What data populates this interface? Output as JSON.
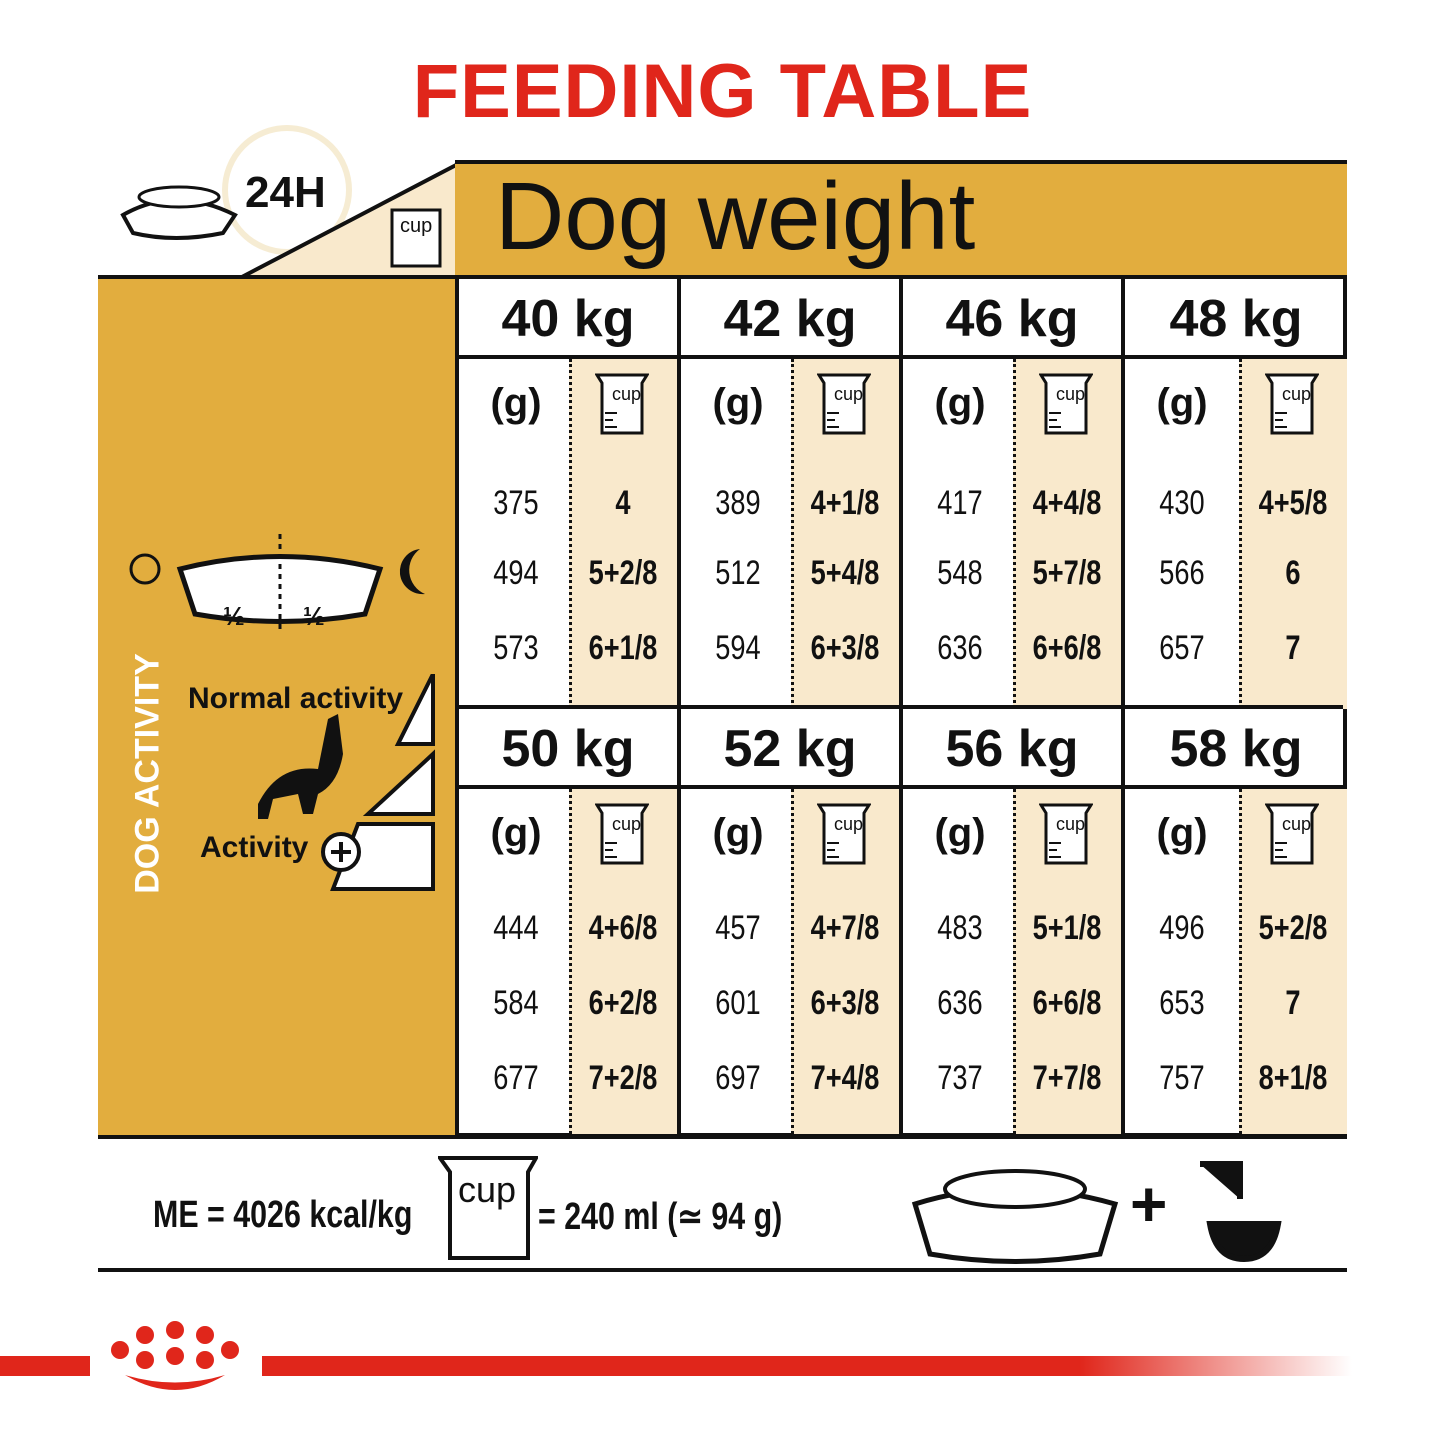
{
  "title": "FEEDING TABLE",
  "header": {
    "label_24h": "24H",
    "cup_label": "cup",
    "dog_weight": "Dog weight"
  },
  "left_panel": {
    "half1": "½",
    "half2": "½",
    "normal_activity": "Normal activity",
    "activity_plus": "Activity",
    "dog_activity": "DOG ACTIVITY"
  },
  "colors": {
    "title_red": "#e0261b",
    "gold": "#e2ad3e",
    "cream": "#f9e9cc"
  },
  "table": {
    "grams_label": "(g)",
    "cup_label": "cup",
    "blocks": [
      {
        "weights": [
          {
            "weight": "40 kg",
            "grams": [
              "375",
              "494",
              "573"
            ],
            "cups": [
              "4",
              "5+2/8",
              "6+1/8"
            ]
          },
          {
            "weight": "42 kg",
            "grams": [
              "389",
              "512",
              "594"
            ],
            "cups": [
              "4+1/8",
              "5+4/8",
              "6+3/8"
            ]
          },
          {
            "weight": "46 kg",
            "grams": [
              "417",
              "548",
              "636"
            ],
            "cups": [
              "4+4/8",
              "5+7/8",
              "6+6/8"
            ]
          },
          {
            "weight": "48 kg",
            "grams": [
              "430",
              "566",
              "657"
            ],
            "cups": [
              "4+5/8",
              "6",
              "7"
            ]
          }
        ]
      },
      {
        "weights": [
          {
            "weight": "50 kg",
            "grams": [
              "444",
              "584",
              "677"
            ],
            "cups": [
              "4+6/8",
              "6+2/8",
              "7+2/8"
            ]
          },
          {
            "weight": "52 kg",
            "grams": [
              "457",
              "601",
              "697"
            ],
            "cups": [
              "4+7/8",
              "6+3/8",
              "7+4/8"
            ]
          },
          {
            "weight": "56 kg",
            "grams": [
              "483",
              "636",
              "737"
            ],
            "cups": [
              "5+1/8",
              "6+6/8",
              "7+7/8"
            ]
          },
          {
            "weight": "58 kg",
            "grams": [
              "496",
              "653",
              "757"
            ],
            "cups": [
              "5+2/8",
              "7",
              "8+1/8"
            ]
          }
        ]
      }
    ]
  },
  "footer": {
    "energy": "ME = 4026 kcal/kg",
    "cup_label": "cup",
    "cup_equiv": "= 240 ml (≃ 94 g)",
    "plus": "+"
  },
  "icons": [
    "bowl-icon",
    "clock-icon",
    "cup-icon",
    "sun-icon",
    "moon-icon",
    "dog-icon",
    "plus-circle-icon",
    "water-tap-icon",
    "royal-canin-logo"
  ]
}
